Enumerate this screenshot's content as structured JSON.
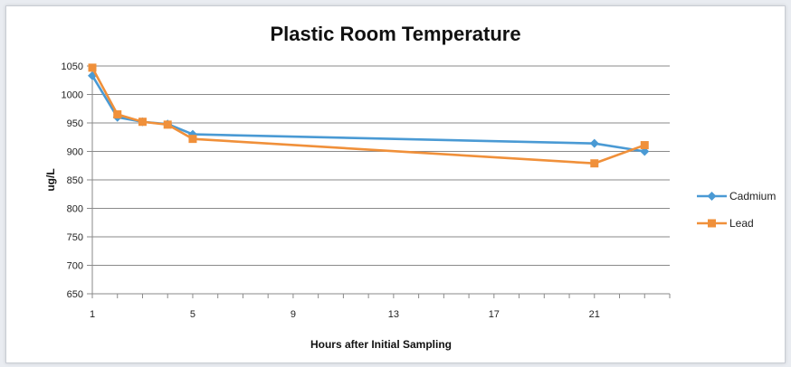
{
  "chart_data": {
    "type": "line",
    "title": "Plastic Room Temperature",
    "xlabel": "Hours after Initial Sampling",
    "ylabel": "ug/L",
    "xlim": [
      1,
      24
    ],
    "ylim": [
      650,
      1050
    ],
    "xticks": [
      1,
      5,
      9,
      13,
      17,
      21
    ],
    "yticks": [
      650,
      700,
      750,
      800,
      850,
      900,
      950,
      1000,
      1050
    ],
    "grid": true,
    "legend_position": "right",
    "series": [
      {
        "name": "Cadmium",
        "color": "#4a9ad4",
        "marker": "diamond",
        "x": [
          1,
          2,
          3,
          4,
          5,
          21,
          23
        ],
        "values": [
          1033,
          960,
          952,
          948,
          930,
          914,
          900
        ]
      },
      {
        "name": "Lead",
        "color": "#f0903a",
        "marker": "square",
        "x": [
          1,
          2,
          3,
          4,
          5,
          21,
          23
        ],
        "values": [
          1047,
          965,
          952,
          947,
          922,
          879,
          911
        ]
      }
    ]
  }
}
